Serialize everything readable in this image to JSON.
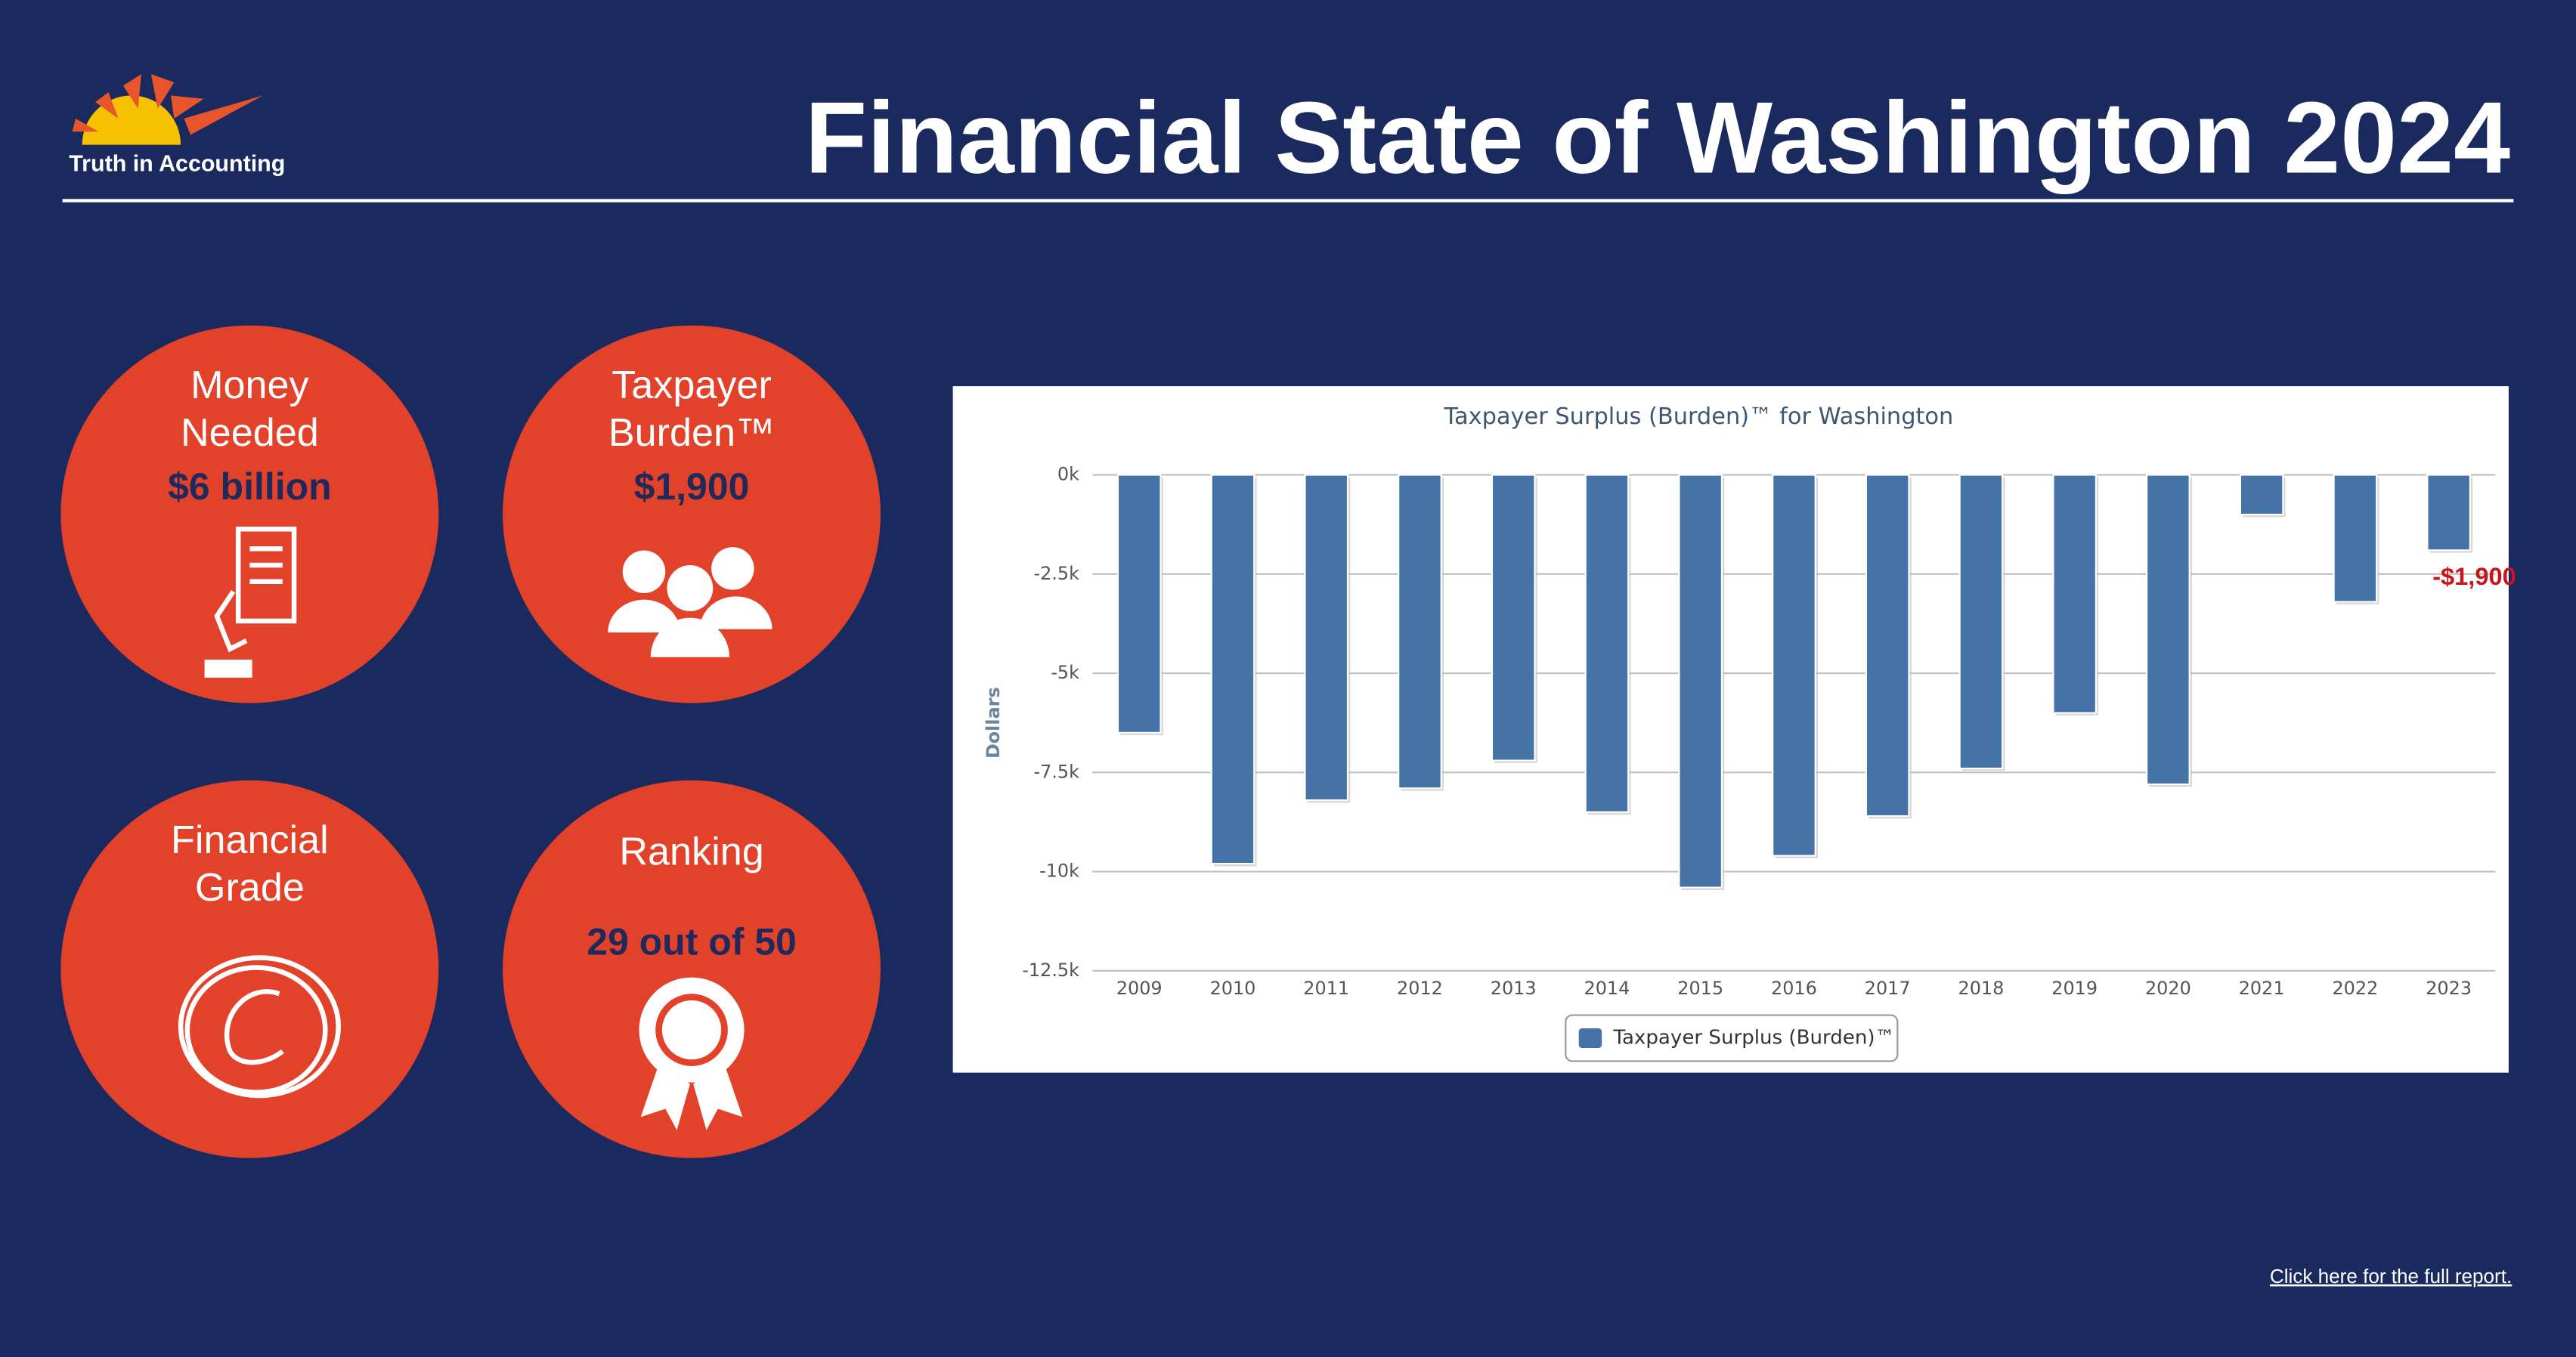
{
  "header": {
    "logo_text": "Truth in Accounting",
    "title": "Financial State of Washington 2024"
  },
  "cards": [
    {
      "label_lines": [
        "Money",
        "Needed"
      ],
      "value": "$6 billion"
    },
    {
      "label_lines": [
        "Taxpayer",
        "Burden™"
      ],
      "value": "$1,900"
    },
    {
      "label_lines": [
        "Financial",
        "Grade"
      ]
    },
    {
      "label_lines": [
        "Ranking"
      ],
      "value": "29 out of 50"
    }
  ],
  "link": "Click here for the full report.",
  "chart_data": {
    "type": "bar",
    "title": "Taxpayer Surplus (Burden)™ for Washington",
    "y_label": "Dollars",
    "categories": [
      "2009",
      "2010",
      "2011",
      "2012",
      "2013",
      "2014",
      "2015",
      "2016",
      "2017",
      "2018",
      "2019",
      "2020",
      "2021",
      "2022",
      "2023"
    ],
    "series": [
      {
        "name": "Taxpayer Surplus (Burden)™",
        "color": "#4572a7",
        "values": [
          -6500,
          -9800,
          -8200,
          -7900,
          -7200,
          -8500,
          -10400,
          -9600,
          -8600,
          -7400,
          -6000,
          -7800,
          -1000,
          -3200,
          -1900
        ],
        "value_labels": [
          null,
          null,
          null,
          null,
          null,
          null,
          null,
          null,
          null,
          null,
          null,
          null,
          null,
          null,
          "-$1,900"
        ]
      }
    ],
    "ylim": [
      -12500,
      0
    ],
    "yticks": [
      {
        "value": 0,
        "label": "0k"
      },
      {
        "value": -2500,
        "label": "-2.5k"
      },
      {
        "value": -5000,
        "label": "-5k"
      },
      {
        "value": -7500,
        "label": "-7.5k"
      },
      {
        "value": -10000,
        "label": "-10k"
      },
      {
        "value": -12500,
        "label": "-12.5k"
      }
    ],
    "grid": true,
    "legend": "bottom"
  }
}
